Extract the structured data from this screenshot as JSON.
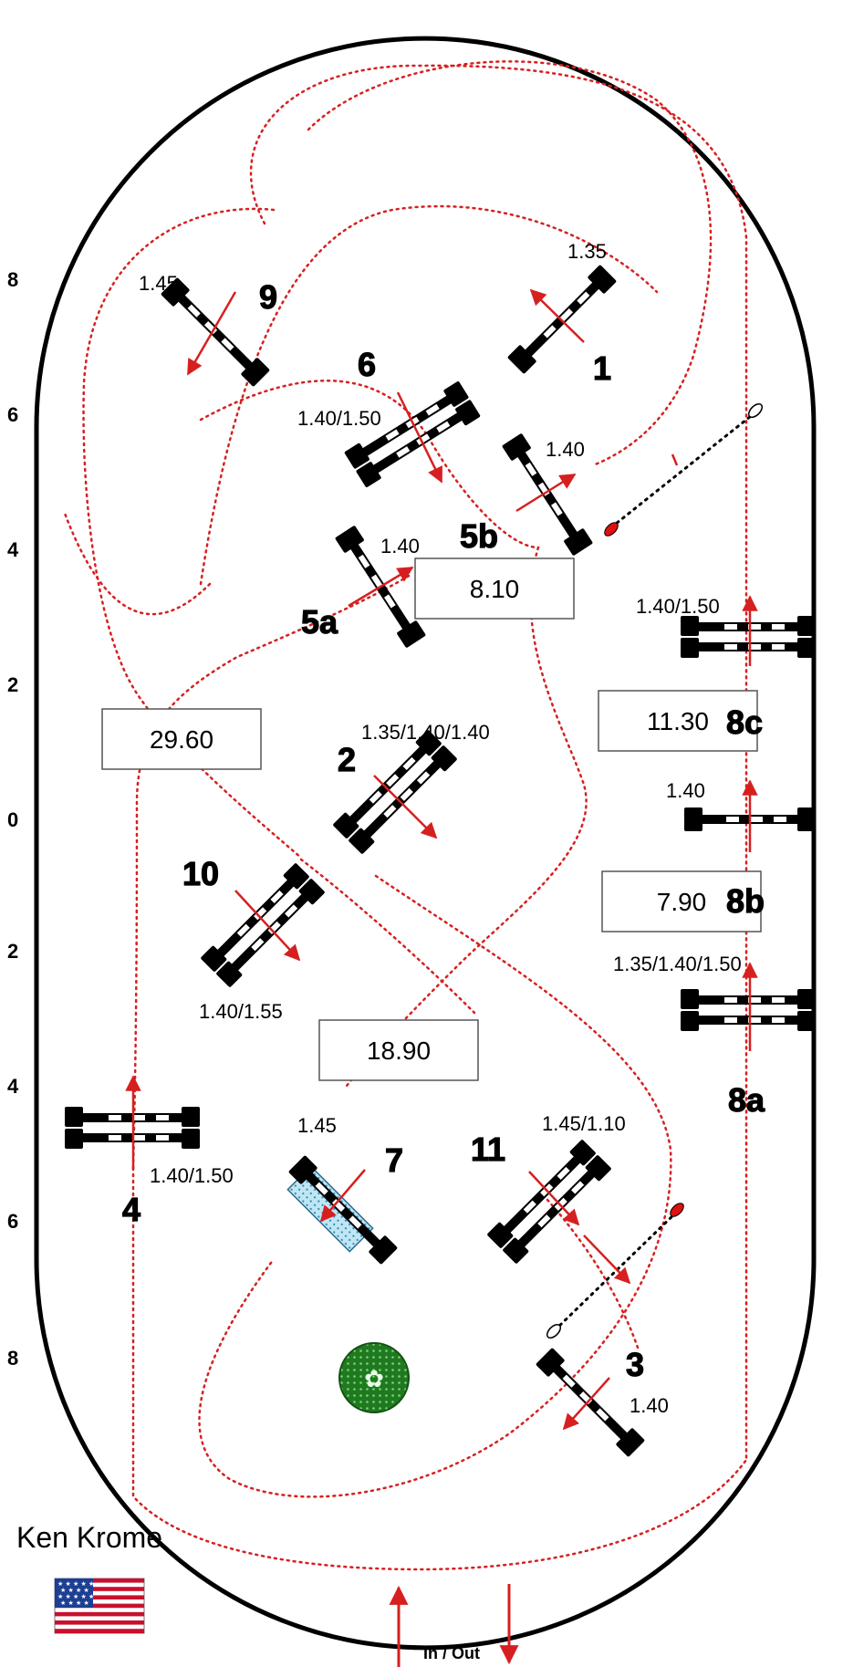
{
  "designer": "Ken Krome",
  "flag": "usa-flag",
  "entrance_label": "In / Out",
  "axis_ticks": [
    "8",
    "6",
    "4",
    "2",
    "0",
    "2",
    "4",
    "6",
    "8"
  ],
  "fences": [
    {
      "id": "fence-1",
      "number": "1",
      "height": "1.35"
    },
    {
      "id": "fence-2",
      "number": "2",
      "height": "1.35/1.40/1.40"
    },
    {
      "id": "fence-3",
      "number": "3",
      "height": "1.40"
    },
    {
      "id": "fence-4",
      "number": "4",
      "height": "1.40/1.50"
    },
    {
      "id": "fence-5a",
      "number": "5a",
      "height": "1.40"
    },
    {
      "id": "fence-5b",
      "number": "5b",
      "height": "1.40"
    },
    {
      "id": "fence-6",
      "number": "6",
      "height": "1.40/1.50"
    },
    {
      "id": "fence-7",
      "number": "7",
      "height": "1.45"
    },
    {
      "id": "fence-8a",
      "number": "8a",
      "height": "1.35/1.40/1.50"
    },
    {
      "id": "fence-8b",
      "number": "8b",
      "height": "1.40"
    },
    {
      "id": "fence-8c",
      "number": "8c",
      "height": "1.40/1.50"
    },
    {
      "id": "fence-9",
      "number": "9",
      "height": "1.45"
    },
    {
      "id": "fence-10",
      "number": "10",
      "height": "1.40/1.55"
    },
    {
      "id": "fence-11",
      "number": "11",
      "height": "1.45/1.10"
    }
  ],
  "distances": [
    "8.10",
    "29.60",
    "11.30",
    "7.90",
    "18.90"
  ],
  "colors": {
    "track": "#d62020",
    "arena_border": "#000000",
    "water": "#9fd4e8",
    "shrub": "#2a8a2a",
    "start_marker": "#e01010"
  }
}
